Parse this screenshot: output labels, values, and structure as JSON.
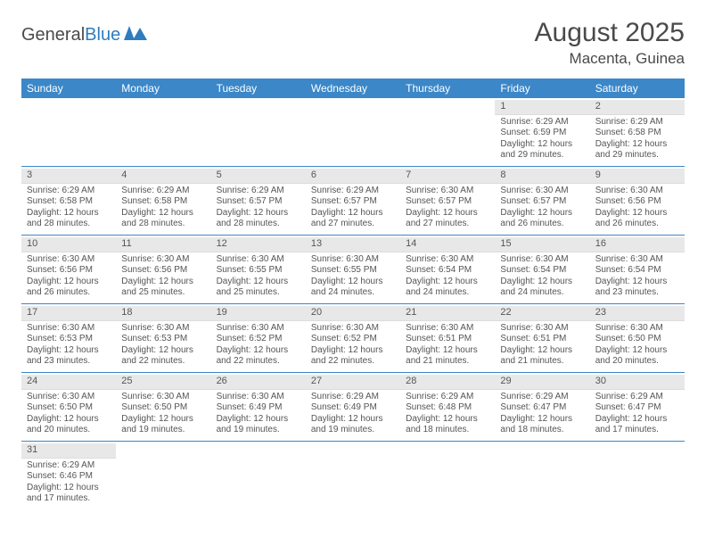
{
  "logo": {
    "word1": "General",
    "word2": "Blue"
  },
  "title": "August 2025",
  "location": "Macenta, Guinea",
  "header_bg": "#3b87c8",
  "day_names": [
    "Sunday",
    "Monday",
    "Tuesday",
    "Wednesday",
    "Thursday",
    "Friday",
    "Saturday"
  ],
  "weeks": [
    [
      null,
      null,
      null,
      null,
      null,
      {
        "n": "1",
        "sr": "Sunrise: 6:29 AM",
        "ss": "Sunset: 6:59 PM",
        "d1": "Daylight: 12 hours",
        "d2": "and 29 minutes."
      },
      {
        "n": "2",
        "sr": "Sunrise: 6:29 AM",
        "ss": "Sunset: 6:58 PM",
        "d1": "Daylight: 12 hours",
        "d2": "and 29 minutes."
      }
    ],
    [
      {
        "n": "3",
        "sr": "Sunrise: 6:29 AM",
        "ss": "Sunset: 6:58 PM",
        "d1": "Daylight: 12 hours",
        "d2": "and 28 minutes."
      },
      {
        "n": "4",
        "sr": "Sunrise: 6:29 AM",
        "ss": "Sunset: 6:58 PM",
        "d1": "Daylight: 12 hours",
        "d2": "and 28 minutes."
      },
      {
        "n": "5",
        "sr": "Sunrise: 6:29 AM",
        "ss": "Sunset: 6:57 PM",
        "d1": "Daylight: 12 hours",
        "d2": "and 28 minutes."
      },
      {
        "n": "6",
        "sr": "Sunrise: 6:29 AM",
        "ss": "Sunset: 6:57 PM",
        "d1": "Daylight: 12 hours",
        "d2": "and 27 minutes."
      },
      {
        "n": "7",
        "sr": "Sunrise: 6:30 AM",
        "ss": "Sunset: 6:57 PM",
        "d1": "Daylight: 12 hours",
        "d2": "and 27 minutes."
      },
      {
        "n": "8",
        "sr": "Sunrise: 6:30 AM",
        "ss": "Sunset: 6:57 PM",
        "d1": "Daylight: 12 hours",
        "d2": "and 26 minutes."
      },
      {
        "n": "9",
        "sr": "Sunrise: 6:30 AM",
        "ss": "Sunset: 6:56 PM",
        "d1": "Daylight: 12 hours",
        "d2": "and 26 minutes."
      }
    ],
    [
      {
        "n": "10",
        "sr": "Sunrise: 6:30 AM",
        "ss": "Sunset: 6:56 PM",
        "d1": "Daylight: 12 hours",
        "d2": "and 26 minutes."
      },
      {
        "n": "11",
        "sr": "Sunrise: 6:30 AM",
        "ss": "Sunset: 6:56 PM",
        "d1": "Daylight: 12 hours",
        "d2": "and 25 minutes."
      },
      {
        "n": "12",
        "sr": "Sunrise: 6:30 AM",
        "ss": "Sunset: 6:55 PM",
        "d1": "Daylight: 12 hours",
        "d2": "and 25 minutes."
      },
      {
        "n": "13",
        "sr": "Sunrise: 6:30 AM",
        "ss": "Sunset: 6:55 PM",
        "d1": "Daylight: 12 hours",
        "d2": "and 24 minutes."
      },
      {
        "n": "14",
        "sr": "Sunrise: 6:30 AM",
        "ss": "Sunset: 6:54 PM",
        "d1": "Daylight: 12 hours",
        "d2": "and 24 minutes."
      },
      {
        "n": "15",
        "sr": "Sunrise: 6:30 AM",
        "ss": "Sunset: 6:54 PM",
        "d1": "Daylight: 12 hours",
        "d2": "and 24 minutes."
      },
      {
        "n": "16",
        "sr": "Sunrise: 6:30 AM",
        "ss": "Sunset: 6:54 PM",
        "d1": "Daylight: 12 hours",
        "d2": "and 23 minutes."
      }
    ],
    [
      {
        "n": "17",
        "sr": "Sunrise: 6:30 AM",
        "ss": "Sunset: 6:53 PM",
        "d1": "Daylight: 12 hours",
        "d2": "and 23 minutes."
      },
      {
        "n": "18",
        "sr": "Sunrise: 6:30 AM",
        "ss": "Sunset: 6:53 PM",
        "d1": "Daylight: 12 hours",
        "d2": "and 22 minutes."
      },
      {
        "n": "19",
        "sr": "Sunrise: 6:30 AM",
        "ss": "Sunset: 6:52 PM",
        "d1": "Daylight: 12 hours",
        "d2": "and 22 minutes."
      },
      {
        "n": "20",
        "sr": "Sunrise: 6:30 AM",
        "ss": "Sunset: 6:52 PM",
        "d1": "Daylight: 12 hours",
        "d2": "and 22 minutes."
      },
      {
        "n": "21",
        "sr": "Sunrise: 6:30 AM",
        "ss": "Sunset: 6:51 PM",
        "d1": "Daylight: 12 hours",
        "d2": "and 21 minutes."
      },
      {
        "n": "22",
        "sr": "Sunrise: 6:30 AM",
        "ss": "Sunset: 6:51 PM",
        "d1": "Daylight: 12 hours",
        "d2": "and 21 minutes."
      },
      {
        "n": "23",
        "sr": "Sunrise: 6:30 AM",
        "ss": "Sunset: 6:50 PM",
        "d1": "Daylight: 12 hours",
        "d2": "and 20 minutes."
      }
    ],
    [
      {
        "n": "24",
        "sr": "Sunrise: 6:30 AM",
        "ss": "Sunset: 6:50 PM",
        "d1": "Daylight: 12 hours",
        "d2": "and 20 minutes."
      },
      {
        "n": "25",
        "sr": "Sunrise: 6:30 AM",
        "ss": "Sunset: 6:50 PM",
        "d1": "Daylight: 12 hours",
        "d2": "and 19 minutes."
      },
      {
        "n": "26",
        "sr": "Sunrise: 6:30 AM",
        "ss": "Sunset: 6:49 PM",
        "d1": "Daylight: 12 hours",
        "d2": "and 19 minutes."
      },
      {
        "n": "27",
        "sr": "Sunrise: 6:29 AM",
        "ss": "Sunset: 6:49 PM",
        "d1": "Daylight: 12 hours",
        "d2": "and 19 minutes."
      },
      {
        "n": "28",
        "sr": "Sunrise: 6:29 AM",
        "ss": "Sunset: 6:48 PM",
        "d1": "Daylight: 12 hours",
        "d2": "and 18 minutes."
      },
      {
        "n": "29",
        "sr": "Sunrise: 6:29 AM",
        "ss": "Sunset: 6:47 PM",
        "d1": "Daylight: 12 hours",
        "d2": "and 18 minutes."
      },
      {
        "n": "30",
        "sr": "Sunrise: 6:29 AM",
        "ss": "Sunset: 6:47 PM",
        "d1": "Daylight: 12 hours",
        "d2": "and 17 minutes."
      }
    ],
    [
      {
        "n": "31",
        "sr": "Sunrise: 6:29 AM",
        "ss": "Sunset: 6:46 PM",
        "d1": "Daylight: 12 hours",
        "d2": "and 17 minutes."
      },
      null,
      null,
      null,
      null,
      null,
      null
    ]
  ]
}
